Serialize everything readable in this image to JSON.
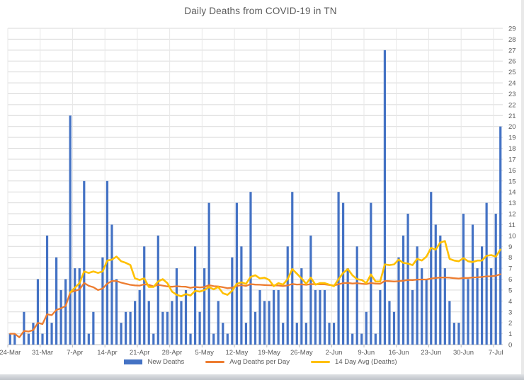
{
  "window": {
    "background": "#ffffff",
    "right_edge_color": "#e9e9e9",
    "bottom_edge_color": "#c5c9cf"
  },
  "chart_data": {
    "type": "bar",
    "title": "Daily Deaths from COVID-19 in TN",
    "title_color": "#595959",
    "axis_text_color": "#595959",
    "gridline_color": "#d9d9d9",
    "vertical_gridline_color": "#e7e7e7",
    "axis_line_color": "#bfbfbf",
    "ylim": [
      0,
      29
    ],
    "grid": true,
    "legend_position": "bottom",
    "y_tick_labels": [
      "0",
      "1",
      "2",
      "3",
      "4",
      "5",
      "6",
      "7",
      "8",
      "9",
      "10",
      "11",
      "12",
      "13",
      "14",
      "15",
      "16",
      "17",
      "18",
      "19",
      "20",
      "21",
      "22",
      "23",
      "24",
      "25",
      "26",
      "27",
      "28",
      "29"
    ],
    "x_tick_labels": [
      "24-Mar",
      "31-Mar",
      "7-Apr",
      "14-Apr",
      "21-Apr",
      "28-Apr",
      "5-May",
      "12-May",
      "19-May",
      "26-May",
      "2-Jun",
      "9-Jun",
      "16-Jun",
      "23-Jun",
      "30-Jun",
      "7-Jul"
    ],
    "categories": [
      "24-Mar",
      "25-Mar",
      "26-Mar",
      "27-Mar",
      "28-Mar",
      "29-Mar",
      "30-Mar",
      "31-Mar",
      "1-Apr",
      "2-Apr",
      "3-Apr",
      "4-Apr",
      "5-Apr",
      "6-Apr",
      "7-Apr",
      "8-Apr",
      "9-Apr",
      "10-Apr",
      "11-Apr",
      "12-Apr",
      "13-Apr",
      "14-Apr",
      "15-Apr",
      "16-Apr",
      "17-Apr",
      "18-Apr",
      "19-Apr",
      "20-Apr",
      "21-Apr",
      "22-Apr",
      "23-Apr",
      "24-Apr",
      "25-Apr",
      "26-Apr",
      "27-Apr",
      "28-Apr",
      "29-Apr",
      "30-Apr",
      "1-May",
      "2-May",
      "3-May",
      "4-May",
      "5-May",
      "6-May",
      "7-May",
      "8-May",
      "9-May",
      "10-May",
      "11-May",
      "12-May",
      "13-May",
      "14-May",
      "15-May",
      "16-May",
      "17-May",
      "18-May",
      "19-May",
      "20-May",
      "21-May",
      "22-May",
      "23-May",
      "24-May",
      "25-May",
      "26-May",
      "27-May",
      "28-May",
      "29-May",
      "30-May",
      "31-May",
      "1-Jun",
      "2-Jun",
      "3-Jun",
      "4-Jun",
      "5-Jun",
      "6-Jun",
      "7-Jun",
      "8-Jun",
      "9-Jun",
      "10-Jun",
      "11-Jun",
      "12-Jun",
      "13-Jun",
      "14-Jun",
      "15-Jun",
      "16-Jun",
      "17-Jun",
      "18-Jun",
      "19-Jun",
      "20-Jun",
      "21-Jun",
      "22-Jun",
      "23-Jun",
      "24-Jun",
      "25-Jun",
      "26-Jun",
      "27-Jun",
      "28-Jun",
      "29-Jun",
      "30-Jun",
      "1-Jul",
      "2-Jul",
      "3-Jul",
      "4-Jul",
      "5-Jul",
      "6-Jul",
      "7-Jul",
      "8-Jul"
    ],
    "series": [
      {
        "name": "New Deaths",
        "type": "bar",
        "color": "#4472C4",
        "start_index": 0,
        "values": [
          1,
          1,
          0,
          3,
          1,
          2,
          6,
          1,
          10,
          2,
          8,
          5,
          6,
          21,
          7,
          7,
          15,
          1,
          3,
          0,
          8,
          15,
          11,
          6,
          2,
          3,
          3,
          4,
          5,
          9,
          4,
          1,
          10,
          3,
          3,
          4,
          7,
          4,
          5,
          1,
          9,
          3,
          7,
          13,
          1,
          4,
          2,
          1,
          8,
          13,
          9,
          2,
          14,
          3,
          5,
          4,
          4,
          5,
          5,
          2,
          9,
          14,
          2,
          7,
          2,
          10,
          5,
          5,
          5,
          2,
          2,
          14,
          13,
          7,
          1,
          9,
          1,
          3,
          13,
          1,
          5,
          27,
          4,
          3,
          8,
          10,
          12,
          5,
          9,
          7,
          6,
          14,
          11,
          10,
          7,
          4,
          2,
          2,
          12,
          6,
          11,
          7,
          9,
          13,
          7,
          12,
          20
        ]
      },
      {
        "name": "Avg Deaths per Day",
        "type": "line",
        "color": "#ED7D31",
        "start_index": 0,
        "values": [
          1,
          1,
          0.67,
          1.25,
          1.2,
          1.33,
          2,
          1.88,
          2.78,
          2.7,
          3.18,
          3.33,
          3.54,
          4.79,
          4.93,
          5.06,
          5.65,
          5.39,
          5.26,
          5,
          5.14,
          5.59,
          5.83,
          5.83,
          5.68,
          5.58,
          5.48,
          5.43,
          5.41,
          5.53,
          5.48,
          5.34,
          5.48,
          5.41,
          5.34,
          5.31,
          5.35,
          5.32,
          5.31,
          5.2,
          5.29,
          5.24,
          5.28,
          5.45,
          5.36,
          5.33,
          5.26,
          5.17,
          5.22,
          5.38,
          5.45,
          5.38,
          5.55,
          5.5,
          5.49,
          5.46,
          5.44,
          5.43,
          5.42,
          5.37,
          5.43,
          5.56,
          5.51,
          5.53,
          5.48,
          5.55,
          5.54,
          5.53,
          5.52,
          5.47,
          5.42,
          5.54,
          5.64,
          5.66,
          5.6,
          5.64,
          5.58,
          5.55,
          5.65,
          5.59,
          5.58,
          5.84,
          5.82,
          5.79,
          5.81,
          5.86,
          5.93,
          5.92,
          5.96,
          5.97,
          5.97,
          6.05,
          6.11,
          6.15,
          6.16,
          6.14,
          6.09,
          6.05,
          6.11,
          6.11,
          6.16,
          6.17,
          6.2,
          6.26,
          6.27,
          6.32,
          6.45
        ]
      },
      {
        "name": "14 Day Avg (Deaths)",
        "type": "line",
        "color": "#FFC000",
        "start_index": 13,
        "values": [
          4.79,
          5.21,
          5.64,
          6.71,
          6.57,
          6.71,
          6.57,
          6.71,
          7.71,
          7.79,
          8.07,
          7.64,
          7.5,
          7.29,
          6.07,
          5.93,
          6.07,
          5.29,
          5.29,
          5.79,
          6,
          5.64,
          4.86,
          4.57,
          4.43,
          4.64,
          4.5,
          4.93,
          4.86,
          5,
          5.29,
          5.07,
          5.29,
          4.71,
          4.57,
          4.93,
          5.57,
          5.71,
          5.57,
          6.21,
          6.36,
          6.07,
          6.14,
          5.93,
          5.36,
          5.64,
          5.5,
          6,
          6.93,
          6.5,
          6.07,
          5.57,
          6.14,
          5.5,
          5.64,
          5.64,
          5.5,
          5.36,
          6,
          6.57,
          6.93,
          6.36,
          6,
          5.93,
          5.64,
          6.43,
          5.79,
          5.79,
          7.36,
          7.29,
          7.36,
          7.79,
          7.5,
          7.43,
          7.29,
          7.86,
          7.71,
          8.07,
          8.86,
          8.71,
          9.36,
          9.5,
          7.86,
          7.71,
          7.64,
          7.93,
          7.64,
          7.57,
          7.71,
          7.71,
          8.14,
          8.21,
          8.07,
          8.71
        ]
      }
    ]
  }
}
